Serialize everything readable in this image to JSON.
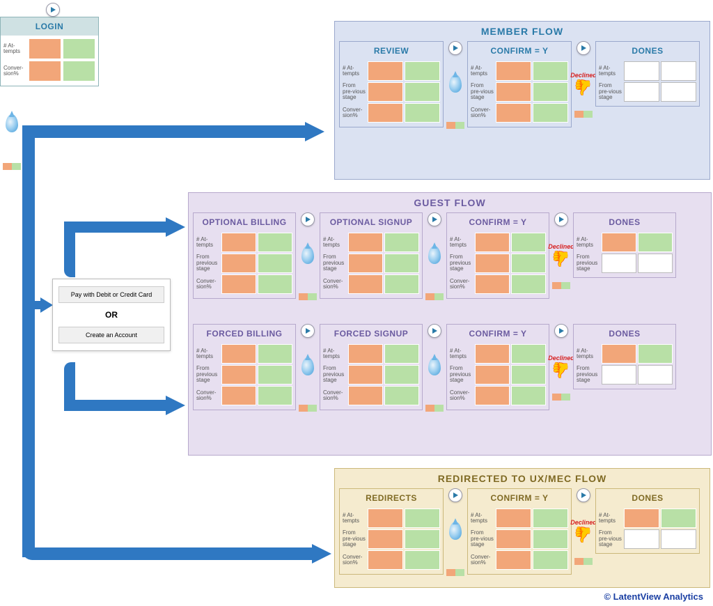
{
  "colors": {
    "orange": "#f2a679",
    "green": "#b8e0a6",
    "empty": "#ffffff",
    "arrow_blue": "#2f78c2",
    "member_bg": "#dbe2f2",
    "member_border": "#9aa8cc",
    "member_title": "#2a7aa8",
    "guest_bg": "#e7dff0",
    "guest_border": "#b6a8cc",
    "guest_title": "#6b5ba0",
    "redirect_bg": "#f5ebcf",
    "redirect_border": "#cbb87a",
    "redirect_title": "#7f6a24"
  },
  "login": {
    "title": "LOGIN",
    "rows": [
      {
        "label": "# At-tempts",
        "c1": "orange",
        "c2": "green"
      },
      {
        "label": "Conver-sion%",
        "c1": "orange",
        "c2": "green"
      }
    ]
  },
  "row_labels": {
    "attempts": "# At-tempts",
    "from": "From previous stage",
    "from_short": "From pre-vious stage",
    "conv": "Conver-sion%"
  },
  "choice": {
    "option1": "Pay with Debit or Credit Card",
    "or": "OR",
    "option2": "Create an Account"
  },
  "declined_label": "Declined",
  "member": {
    "title": "MEMBER FLOW",
    "cards": [
      {
        "title": "REVIEW",
        "rows": [
          [
            "orange",
            "green"
          ],
          [
            "orange",
            "green"
          ],
          [
            "orange",
            "green"
          ]
        ],
        "after": "drop"
      },
      {
        "title": "CONFIRM = Y",
        "rows": [
          [
            "orange",
            "green"
          ],
          [
            "orange",
            "green"
          ],
          [
            "orange",
            "green"
          ]
        ],
        "after": "declined"
      },
      {
        "title": "DONES",
        "rows": [
          [
            "empty",
            "empty"
          ],
          [
            "empty",
            "empty"
          ],
          null
        ]
      }
    ]
  },
  "guest": {
    "title": "GUEST FLOW",
    "row1": [
      {
        "title": "OPTIONAL BILLING",
        "rows": [
          [
            "orange",
            "green"
          ],
          [
            "orange",
            "green"
          ],
          [
            "orange",
            "green"
          ]
        ],
        "after": "drop"
      },
      {
        "title": "OPTIONAL SIGNUP",
        "rows": [
          [
            "orange",
            "green"
          ],
          [
            "orange",
            "green"
          ],
          [
            "orange",
            "green"
          ]
        ],
        "after": "drop"
      },
      {
        "title": "CONFIRM = Y",
        "rows": [
          [
            "orange",
            "green"
          ],
          [
            "orange",
            "green"
          ],
          [
            "orange",
            "green"
          ]
        ],
        "after": "declined"
      },
      {
        "title": "DONES",
        "rows": [
          [
            "orange",
            "green"
          ],
          [
            "empty",
            "empty"
          ],
          null
        ]
      }
    ],
    "row2": [
      {
        "title": "FORCED BILLING",
        "rows": [
          [
            "orange",
            "green"
          ],
          [
            "orange",
            "green"
          ],
          [
            "orange",
            "green"
          ]
        ],
        "after": "drop"
      },
      {
        "title": "FORCED SIGNUP",
        "rows": [
          [
            "orange",
            "green"
          ],
          [
            "orange",
            "green"
          ],
          [
            "orange",
            "green"
          ]
        ],
        "after": "drop"
      },
      {
        "title": "CONFIRM = Y",
        "rows": [
          [
            "orange",
            "green"
          ],
          [
            "orange",
            "green"
          ],
          [
            "orange",
            "green"
          ]
        ],
        "after": "declined"
      },
      {
        "title": "DONES",
        "rows": [
          [
            "orange",
            "green"
          ],
          [
            "empty",
            "empty"
          ],
          null
        ]
      }
    ]
  },
  "redirect": {
    "title": "REDIRECTED TO UX/MEC FLOW",
    "cards": [
      {
        "title": "REDIRECTS",
        "rows": [
          [
            "orange",
            "green"
          ],
          [
            "orange",
            "green"
          ],
          [
            "orange",
            "green"
          ]
        ],
        "after": "drop"
      },
      {
        "title": "CONFIRM = Y",
        "rows": [
          [
            "orange",
            "green"
          ],
          [
            "orange",
            "green"
          ],
          [
            "orange",
            "green"
          ]
        ],
        "after": "declined"
      },
      {
        "title": "DONES",
        "rows": [
          [
            "orange",
            "green"
          ],
          [
            "empty",
            "empty"
          ],
          null
        ]
      }
    ]
  },
  "footer": "© LatentView Analytics"
}
